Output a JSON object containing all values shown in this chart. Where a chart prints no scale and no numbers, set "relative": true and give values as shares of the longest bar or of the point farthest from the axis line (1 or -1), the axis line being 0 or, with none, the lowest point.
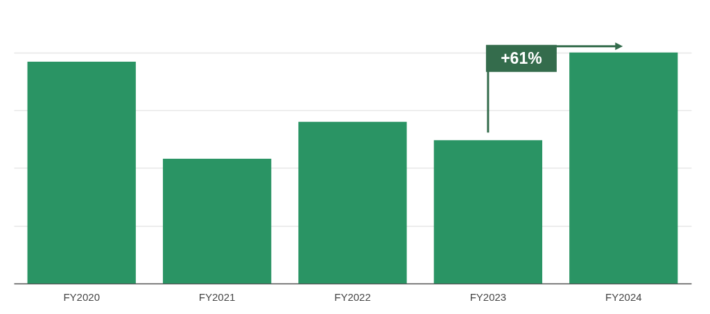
{
  "chart_data": {
    "type": "bar",
    "relative": true,
    "categories": [
      "FY2020",
      "FY2021",
      "FY2022",
      "FY2023",
      "FY2024"
    ],
    "values": [
      0.96,
      0.54,
      0.7,
      0.62,
      1
    ],
    "color": "#2a9464",
    "grid": true,
    "annotations": [
      "+61%"
    ]
  }
}
